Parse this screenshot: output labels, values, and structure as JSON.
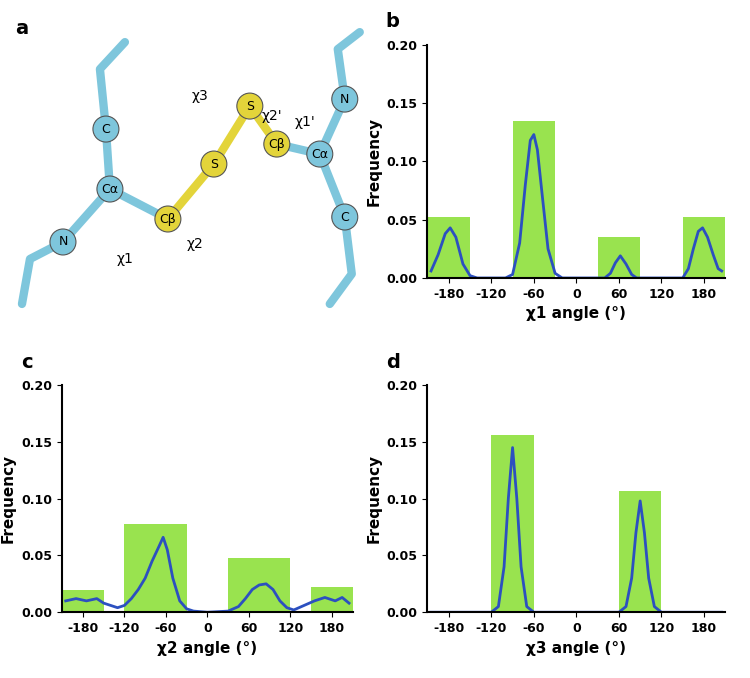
{
  "diagram": {
    "title": "a",
    "atoms": [
      "N",
      "Cα",
      "C",
      "Cβ",
      "S",
      "S",
      "Cβ",
      "Cα",
      "N",
      "C"
    ],
    "angles": [
      "χ1",
      "χ2",
      "χ3",
      "χ2'",
      "χ1'"
    ]
  },
  "chart_data": [
    {
      "type": "histogram",
      "title": "b",
      "x_label": "χ1 angle (°)",
      "y_label": "Frequency",
      "color": "#99e34f",
      "bins": [
        -210,
        -150,
        -90,
        -30,
        30,
        90,
        150,
        210
      ],
      "counts": [
        0.052,
        0,
        0.135,
        0,
        0.035,
        0,
        0.052
      ],
      "series": [
        {
          "type": "line",
          "color": "#2c50c0",
          "x": [
            -205,
            -195,
            -185,
            -178,
            -170,
            -160,
            -150,
            -140,
            -100,
            -90,
            -80,
            -72,
            -65,
            -60,
            -55,
            -48,
            -40,
            -30,
            -20,
            40,
            48,
            55,
            62,
            70,
            78,
            85,
            150,
            158,
            165,
            172,
            178,
            185,
            193,
            200,
            205
          ],
          "values": [
            0.006,
            0.02,
            0.038,
            0.043,
            0.035,
            0.012,
            0.002,
            0,
            0,
            0.003,
            0.03,
            0.08,
            0.118,
            0.123,
            0.11,
            0.07,
            0.025,
            0.004,
            0,
            0,
            0.004,
            0.013,
            0.019,
            0.012,
            0.003,
            0,
            0,
            0.008,
            0.025,
            0.04,
            0.043,
            0.035,
            0.02,
            0.008,
            0.006
          ]
        }
      ],
      "xlim": [
        -210,
        210
      ],
      "xticks": [
        -180,
        -120,
        -60,
        0,
        60,
        120,
        180
      ],
      "ylim": [
        0,
        0.2
      ],
      "yticks": [
        {
          "value": 0,
          "label": "0.00"
        },
        {
          "value": 0.05,
          "label": "0.05"
        },
        {
          "value": 0.1,
          "label": "0.10"
        },
        {
          "value": 0.15,
          "label": "0.15"
        },
        {
          "value": 0.2,
          "label": "0.20"
        }
      ]
    },
    {
      "type": "histogram",
      "title": "c",
      "x_label": "χ2 angle (°)",
      "y_label": "Frequency",
      "color": "#99e34f",
      "bins": [
        -210,
        -150,
        -120,
        -30,
        30,
        120,
        150,
        210
      ],
      "counts": [
        0.02,
        0,
        0.078,
        0,
        0.048,
        0,
        0.022
      ],
      "series": [
        {
          "type": "line",
          "color": "#2c50c0",
          "x": [
            -205,
            -190,
            -175,
            -160,
            -150,
            -140,
            -130,
            -120,
            -110,
            -100,
            -90,
            -80,
            -70,
            -64,
            -58,
            -50,
            -40,
            -30,
            -20,
            0,
            30,
            45,
            55,
            65,
            75,
            85,
            95,
            105,
            115,
            125,
            140,
            155,
            170,
            185,
            195,
            205
          ],
          "values": [
            0.01,
            0.012,
            0.01,
            0.012,
            0.008,
            0.006,
            0.004,
            0.006,
            0.012,
            0.02,
            0.03,
            0.045,
            0.058,
            0.066,
            0.055,
            0.03,
            0.01,
            0.003,
            0.001,
            0,
            0.001,
            0.005,
            0.012,
            0.02,
            0.024,
            0.025,
            0.02,
            0.01,
            0.004,
            0.002,
            0.006,
            0.01,
            0.013,
            0.01,
            0.013,
            0.008
          ]
        }
      ],
      "xlim": [
        -210,
        210
      ],
      "xticks": [
        -180,
        -120,
        -60,
        0,
        60,
        120,
        180
      ],
      "ylim": [
        0,
        0.2
      ],
      "yticks": [
        {
          "value": 0,
          "label": "0.00"
        },
        {
          "value": 0.05,
          "label": "0.05"
        },
        {
          "value": 0.1,
          "label": "0.10"
        },
        {
          "value": 0.15,
          "label": "0.15"
        },
        {
          "value": 0.2,
          "label": "0.20"
        }
      ]
    },
    {
      "type": "histogram",
      "title": "d",
      "x_label": "χ3 angle (°)",
      "y_label": "Frequency",
      "color": "#99e34f",
      "bins": [
        -210,
        -120,
        -60,
        60,
        120,
        210
      ],
      "counts": [
        0,
        0.156,
        0,
        0.107,
        0
      ],
      "series": [
        {
          "type": "line",
          "color": "#2c50c0",
          "x": [
            -205,
            -120,
            -110,
            -102,
            -96,
            -90,
            -84,
            -78,
            -70,
            -60,
            60,
            70,
            78,
            84,
            90,
            96,
            102,
            110,
            120,
            205
          ],
          "values": [
            0,
            0,
            0.005,
            0.04,
            0.1,
            0.145,
            0.1,
            0.04,
            0.005,
            0,
            0,
            0.005,
            0.03,
            0.07,
            0.098,
            0.07,
            0.03,
            0.005,
            0,
            0
          ]
        }
      ],
      "xlim": [
        -210,
        210
      ],
      "xticks": [
        -180,
        -120,
        -60,
        0,
        60,
        120,
        180
      ],
      "ylim": [
        0,
        0.2
      ],
      "yticks": [
        {
          "value": 0,
          "label": "0.00"
        },
        {
          "value": 0.05,
          "label": "0.05"
        },
        {
          "value": 0.1,
          "label": "0.10"
        },
        {
          "value": 0.15,
          "label": "0.15"
        },
        {
          "value": 0.2,
          "label": "0.20"
        }
      ]
    }
  ]
}
